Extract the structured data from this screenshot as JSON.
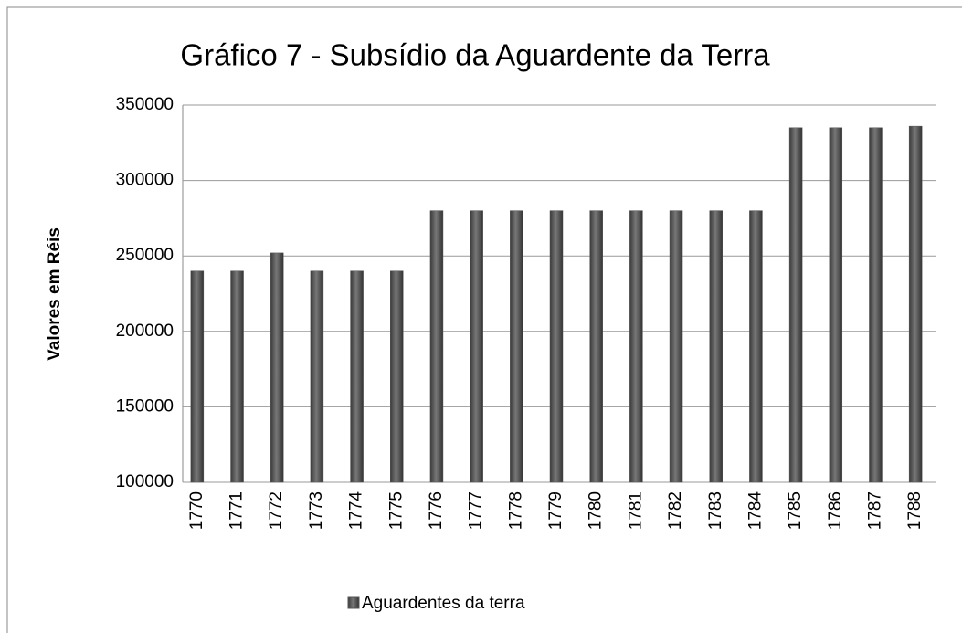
{
  "chart_data": {
    "type": "bar",
    "title": "Gráfico 7 - Subsídio da Aguardente da Terra",
    "y_label": "Valores em Réis",
    "categories": [
      "1770",
      "1771",
      "1772",
      "1773",
      "1774",
      "1775",
      "1776",
      "1777",
      "1778",
      "1779",
      "1780",
      "1781",
      "1782",
      "1783",
      "1784",
      "1785",
      "1786",
      "1787",
      "1788"
    ],
    "series": [
      {
        "name": "Aguardentes da terra",
        "color": "#555555",
        "values": [
          240000,
          240000,
          252000,
          240000,
          240000,
          240000,
          280000,
          280000,
          280000,
          280000,
          280000,
          280000,
          280000,
          280000,
          280000,
          335000,
          335000,
          335000,
          336000
        ]
      }
    ],
    "ylim": [
      100000,
      350000
    ],
    "yticks": [
      100000,
      150000,
      200000,
      250000,
      300000,
      350000
    ],
    "grid": true,
    "legend": "bottom"
  }
}
